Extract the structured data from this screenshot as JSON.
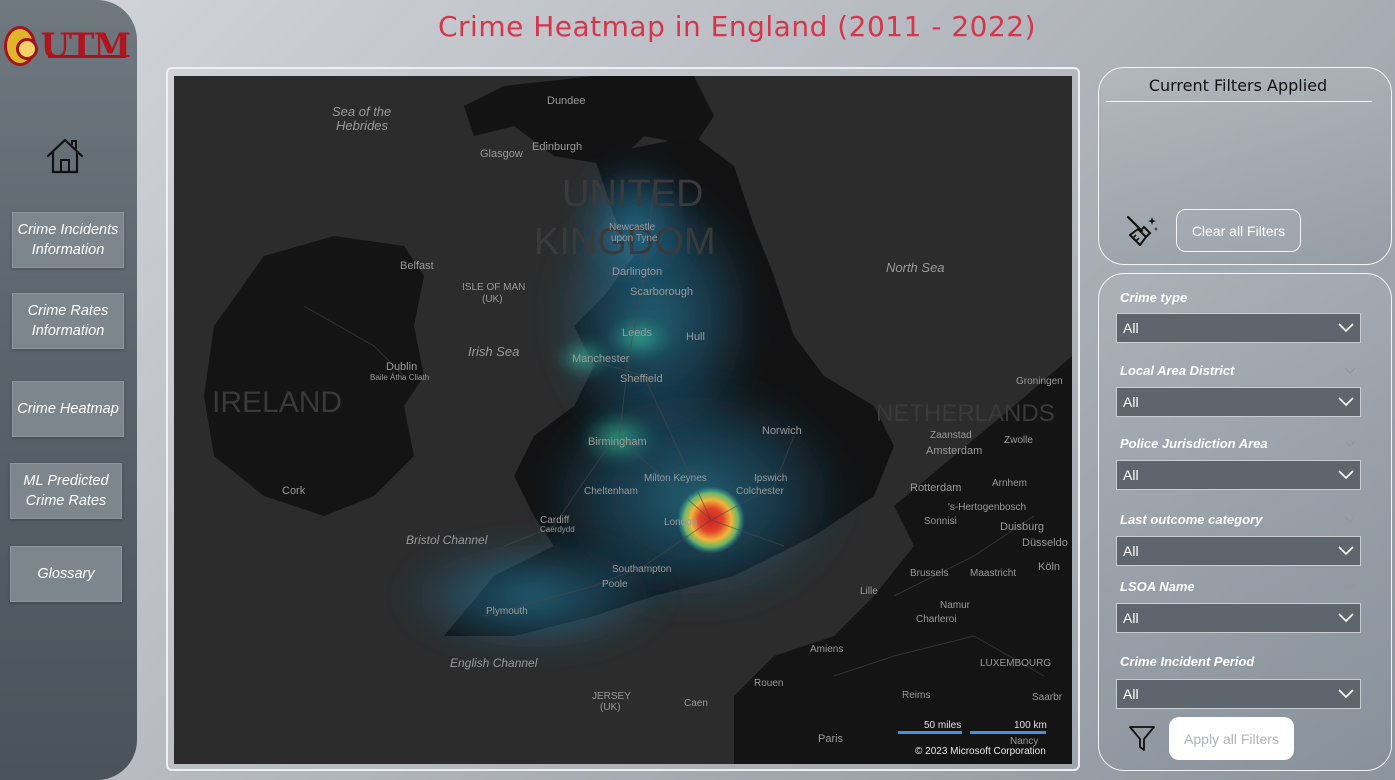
{
  "title": "Crime Heatmap in England (2011 - 2022)",
  "logo": {
    "text": "UTM"
  },
  "nav": {
    "items": [
      {
        "label": "Crime Incidents\nInformation"
      },
      {
        "label": "Crime Rates\nInformation"
      },
      {
        "label": "Crime Heatmap"
      },
      {
        "label": "ML Predicted\nCrime Rates"
      },
      {
        "label": "Glossary"
      }
    ]
  },
  "filters_summary": {
    "title": "Current Filters Applied",
    "clear_label": "Clear all Filters"
  },
  "filters": [
    {
      "label": "Crime type",
      "value": "All"
    },
    {
      "label": "Local Area District",
      "value": "All"
    },
    {
      "label": "Police Jurisdiction Area",
      "value": "All"
    },
    {
      "label": "Last outcome category",
      "value": "All"
    },
    {
      "label": "LSOA Name",
      "value": "All"
    },
    {
      "label": "Crime Incident Period",
      "value": "All"
    }
  ],
  "apply_label": "Apply all Filters",
  "map": {
    "labels": {
      "sea_hebrides_1": "Sea of the",
      "sea_hebrides_2": "Hebrides",
      "dundee": "Dundee",
      "glasgow": "Glasgow",
      "edinburgh": "Edinburgh",
      "uk_1": "UNITED",
      "uk_2": "KINGDOM",
      "newcastle_1": "Newcastle",
      "newcastle_2": "upon Tyne",
      "north_sea": "North Sea",
      "belfast": "Belfast",
      "isle_of_man_1": "ISLE OF MAN",
      "isle_of_man_2": "(UK)",
      "darlington": "Darlington",
      "scarborough": "Scarborough",
      "leeds": "Leeds",
      "hull": "Hull",
      "irish_sea": "Irish Sea",
      "manchester": "Manchester",
      "sheffield": "Sheffield",
      "dublin_1": "Dublin",
      "dublin_2": "Baile Átha Cliath",
      "ireland": "IRELAND",
      "groningen": "Groningen",
      "netherlands": "NETHERLANDS",
      "norwich": "Norwich",
      "zaanstad": "Zaanstad",
      "zwolle": "Zwolle",
      "amsterdam": "Amsterdam",
      "birmingham": "Birmingham",
      "milton_keynes": "Milton Keynes",
      "ipswich": "Ipswich",
      "colchester": "Colchester",
      "cheltenham": "Cheltenham",
      "rotterdam": "Rotterdam",
      "arnhem": "Arnhem",
      "hertogenbosch": "'s-Hertogenbosch",
      "cork": "Cork",
      "cardiff_1": "Cardiff",
      "cardiff_2": "Caerdydd",
      "london": "London",
      "sonnisi": "Sonnisi",
      "duisburg": "Duisburg",
      "dusseldorf": "Düsseldo",
      "bristol_channel": "Bristol Channel",
      "southampton": "Southampton",
      "poole": "Poole",
      "brussels": "Brussels",
      "maastricht": "Maastricht",
      "koln": "Köln",
      "lille": "Lille",
      "namur": "Namur",
      "charleroi": "Charleroi",
      "plymouth": "Plymouth",
      "english_channel": "English Channel",
      "amiens": "Amiens",
      "luxembourg": "LUXEMBOURG",
      "jersey_1": "JERSEY",
      "jersey_2": "(UK)",
      "rouen": "Rouen",
      "caen": "Caen",
      "reims": "Reims",
      "saarbr": "Saarbr",
      "paris": "Paris",
      "nancy": "Nancy"
    },
    "scale_miles": "50 miles",
    "scale_km": "100 km",
    "copyright": "© 2023 Microsoft Corporation",
    "hotspot_color": "#d11f1f"
  }
}
